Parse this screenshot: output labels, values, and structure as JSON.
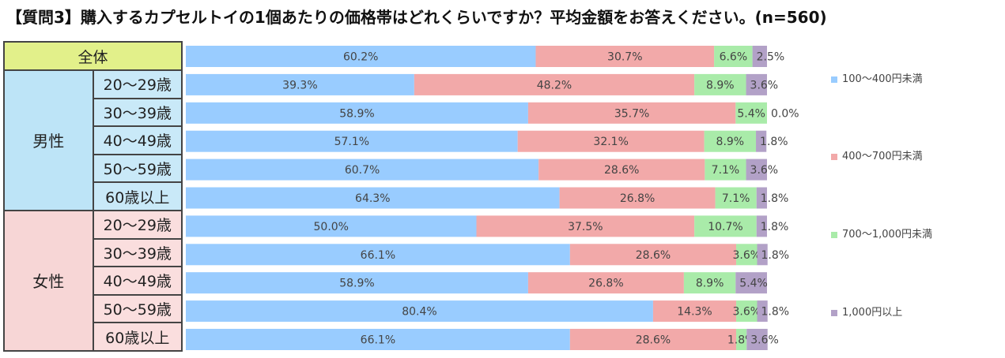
{
  "title": "【質問3】購入するカプセルトイの1個あたりの価格帯はどれくらいですか？平均金額をお答えください。(n=560)",
  "table": {
    "all_label": "全体",
    "male_label": "男性",
    "female_label": "女性",
    "male_ages": [
      "20～29歳",
      "30～39歳",
      "40～49歳",
      "50～59歳",
      "60歳以上"
    ],
    "female_ages": [
      "20～29歳",
      "30～39歳",
      "40～49歳",
      "50～59歳",
      "60歳以上"
    ]
  },
  "legend": [
    {
      "label": "100～400円未満",
      "color": "#99ccff"
    },
    {
      "label": "400～700円未満",
      "color": "#f2a9a9"
    },
    {
      "label": "700～1,000円未満",
      "color": "#a9eba9"
    },
    {
      "label": "1,000円以上",
      "color": "#b2a1c7"
    }
  ],
  "chart_data": {
    "type": "bar",
    "stacked": "100%",
    "orientation": "horizontal",
    "categories": [
      "全体",
      "男性 20～29歳",
      "男性 30～39歳",
      "男性 40～49歳",
      "男性 50～59歳",
      "男性 60歳以上",
      "女性 20～29歳",
      "女性 30～39歳",
      "女性 40～49歳",
      "女性 50～59歳",
      "女性 60歳以上"
    ],
    "series": [
      {
        "name": "100～400円未満",
        "color": "#99ccff",
        "values": [
          60.2,
          39.3,
          58.9,
          57.1,
          60.7,
          64.3,
          50.0,
          66.1,
          58.9,
          80.4,
          66.1
        ]
      },
      {
        "name": "400～700円未満",
        "color": "#f2a9a9",
        "values": [
          30.7,
          48.2,
          35.7,
          32.1,
          28.6,
          26.8,
          37.5,
          28.6,
          26.8,
          14.3,
          28.6
        ]
      },
      {
        "name": "700～1,000円未満",
        "color": "#a9eba9",
        "values": [
          6.6,
          8.9,
          5.4,
          8.9,
          7.1,
          7.1,
          10.7,
          3.6,
          8.9,
          3.6,
          1.8
        ]
      },
      {
        "name": "1,000円以上",
        "color": "#b2a1c7",
        "values": [
          2.5,
          3.6,
          0.0,
          1.8,
          3.6,
          1.8,
          1.8,
          1.8,
          5.4,
          1.8,
          3.6
        ]
      }
    ],
    "labels": [
      [
        "60.2%",
        "30.7%",
        "6.6%",
        "2.5%"
      ],
      [
        "39.3%",
        "48.2%",
        "8.9%",
        "3.6%"
      ],
      [
        "58.9%",
        "35.7%",
        "5.4%",
        "0.0%"
      ],
      [
        "57.1%",
        "32.1%",
        "8.9%",
        "1.8%"
      ],
      [
        "60.7%",
        "28.6%",
        "7.1%",
        "3.6%"
      ],
      [
        "64.3%",
        "26.8%",
        "7.1%",
        "1.8%"
      ],
      [
        "50.0%",
        "37.5%",
        "10.7%",
        "1.8%"
      ],
      [
        "66.1%",
        "28.6%",
        "3.6%",
        "1.8%"
      ],
      [
        "58.9%",
        "26.8%",
        "8.9%",
        "5.4%"
      ],
      [
        "80.4%",
        "14.3%",
        "3.6%",
        "1.8%"
      ],
      [
        "66.1%",
        "28.6%",
        "1.8%",
        "3.6%"
      ]
    ],
    "xlim": [
      0,
      100
    ]
  }
}
